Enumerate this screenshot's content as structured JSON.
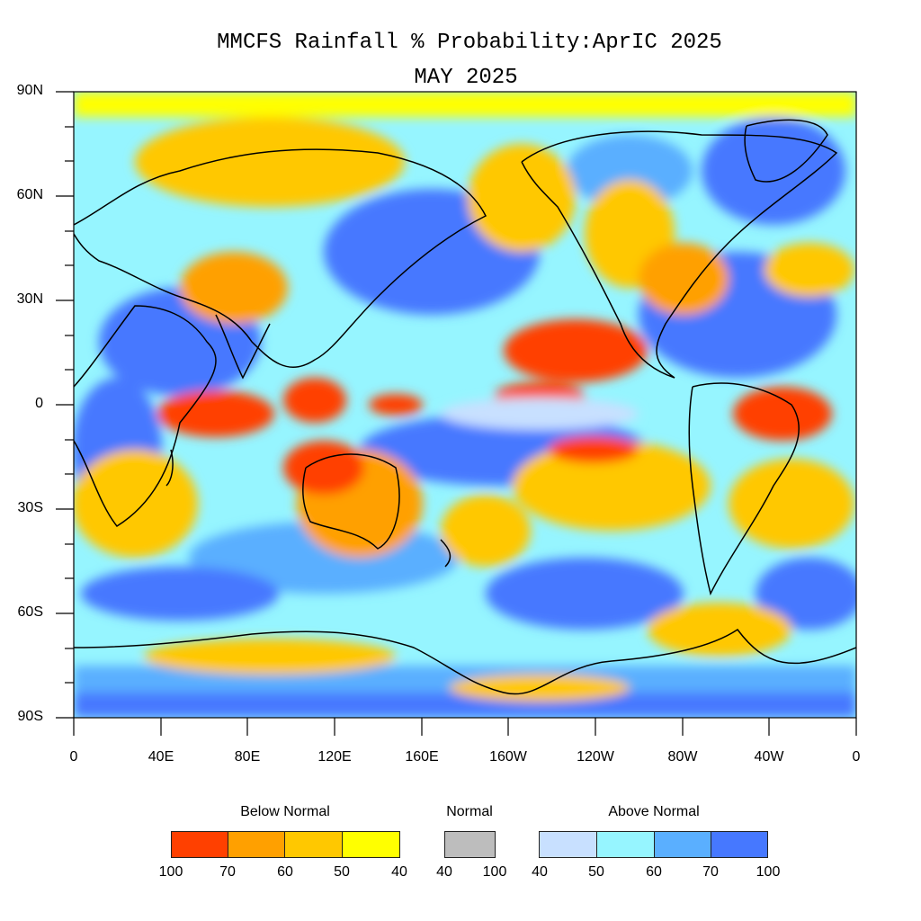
{
  "title_line1": "MMCFS Rainfall % Probability:AprIC 2025",
  "title_line2": "MAY 2025",
  "y_tick_labels": [
    "90N",
    "60N",
    "30N",
    "0",
    "30S",
    "60S",
    "90S"
  ],
  "x_tick_labels": [
    "0",
    "40E",
    "80E",
    "120E",
    "160E",
    "160W",
    "120W",
    "80W",
    "40W",
    "0"
  ],
  "legend": {
    "below_title": "Below Normal",
    "normal_title": "Normal",
    "above_title": "Above Normal",
    "below_colors": [
      "#ff4000",
      "#ffa000",
      "#ffc800",
      "#ffff00"
    ],
    "below_values": [
      "100",
      "70",
      "60",
      "50",
      "40"
    ],
    "normal_color": "#bdbdbd",
    "normal_values": [
      "40",
      "100"
    ],
    "above_colors": [
      "#c8e0ff",
      "#96f5ff",
      "#5aafff",
      "#4678ff"
    ],
    "above_values": [
      "40",
      "50",
      "60",
      "70",
      "100"
    ]
  },
  "colors": {
    "ocean_base": "#96f5ff",
    "coastline": "#000000"
  }
}
